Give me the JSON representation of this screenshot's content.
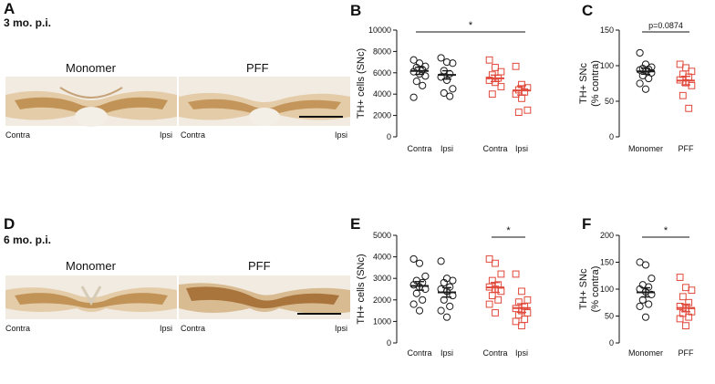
{
  "colors": {
    "monomer": "#1a1a1a",
    "pff": "#e0483a",
    "tissue": "#c79a55",
    "background_tissue": "#f1ebe1"
  },
  "rows": [
    {
      "letter": "A",
      "timepoint": "3 mo. p.i.",
      "images": [
        {
          "title": "Monomer",
          "left_label": "Contra",
          "right_label": "Ipsi"
        },
        {
          "title": "PFF",
          "left_label": "Contra",
          "right_label": "Ipsi"
        }
      ]
    },
    {
      "letter": "D",
      "timepoint": "6 mo. p.i.",
      "images": [
        {
          "title": "Monomer",
          "left_label": "Contra",
          "right_label": "Ipsi"
        },
        {
          "title": "PFF",
          "left_label": "Contra",
          "right_label": "Ipsi"
        }
      ]
    }
  ],
  "chart_data": [
    {
      "id": "B",
      "letter": "B",
      "type": "scatter",
      "ylabel": "TH+ cells (SNc)",
      "ylim": [
        0,
        10000
      ],
      "yticks": [
        "0",
        "2000",
        "4000",
        "6000",
        "8000",
        "10000"
      ],
      "categories": [
        "Contra",
        "Ipsi",
        "Contra",
        "Ipsi"
      ],
      "groups": [
        {
          "name": "Monomer Contra",
          "series": "monomer",
          "values": [
            7200,
            6900,
            6600,
            6500,
            6300,
            6100,
            5900,
            5700,
            5200,
            4800,
            3700
          ],
          "mean": 6180,
          "sem": 330
        },
        {
          "name": "Monomer Ipsi",
          "series": "monomer",
          "values": [
            7400,
            7000,
            6900,
            6200,
            5900,
            5600,
            5300,
            4500,
            4100,
            3800
          ],
          "mean": 5800,
          "sem": 390
        },
        {
          "name": "PFF Contra",
          "series": "pff",
          "values": [
            7200,
            6500,
            6100,
            5800,
            5500,
            5300,
            5100,
            4700,
            4000
          ],
          "mean": 5480,
          "sem": 300
        },
        {
          "name": "PFF Ipsi",
          "series": "pff",
          "values": [
            6600,
            4900,
            4600,
            4400,
            4200,
            4000,
            3600,
            2500,
            2300
          ],
          "mean": 4350,
          "sem": 430
        }
      ],
      "significance": [
        {
          "from": 0,
          "to": 3,
          "label": "*"
        }
      ]
    },
    {
      "id": "C",
      "letter": "C",
      "type": "scatter",
      "ylabel": "TH+ SNc",
      "ylabel2": "(% contra)",
      "ylim": [
        0,
        150
      ],
      "yticks": [
        "0",
        "50",
        "100",
        "150"
      ],
      "categories": [
        "Monomer",
        "PFF"
      ],
      "groups": [
        {
          "name": "Monomer",
          "series": "monomer",
          "values": [
            118,
            102,
            98,
            96,
            95,
            94,
            92,
            90,
            86,
            82,
            75,
            67
          ],
          "mean": 92,
          "sem": 4
        },
        {
          "name": "PFF",
          "series": "pff",
          "values": [
            102,
            97,
            92,
            88,
            84,
            80,
            76,
            72,
            58,
            40
          ],
          "mean": 79,
          "sem": 6
        }
      ],
      "significance": [
        {
          "from": 0,
          "to": 1,
          "label": "p=0.0874"
        }
      ]
    },
    {
      "id": "E",
      "letter": "E",
      "type": "scatter",
      "ylabel": "TH+ cells (SNc)",
      "ylim": [
        0,
        5000
      ],
      "yticks": [
        "0",
        "1000",
        "2000",
        "3000",
        "4000",
        "5000"
      ],
      "categories": [
        "Contra",
        "Ipsi",
        "Contra",
        "Ipsi"
      ],
      "groups": [
        {
          "name": "Monomer Contra",
          "series": "monomer",
          "values": [
            3900,
            3700,
            3100,
            2900,
            2800,
            2700,
            2600,
            2500,
            2300,
            2000,
            1800,
            1500
          ],
          "mean": 2650,
          "sem": 200
        },
        {
          "name": "Monomer Ipsi",
          "series": "monomer",
          "values": [
            3800,
            3000,
            2900,
            2800,
            2600,
            2500,
            2400,
            2200,
            2000,
            1700,
            1500,
            1200
          ],
          "mean": 2350,
          "sem": 220
        },
        {
          "name": "PFF Contra",
          "series": "pff",
          "values": [
            3900,
            3700,
            3200,
            2900,
            2700,
            2600,
            2500,
            2400,
            2200,
            2000,
            1800,
            1400
          ],
          "mean": 2580,
          "sem": 230
        },
        {
          "name": "PFF Ipsi",
          "series": "pff",
          "values": [
            3200,
            2400,
            2000,
            1900,
            1700,
            1600,
            1500,
            1400,
            1300,
            1100,
            1000,
            800
          ],
          "mean": 1620,
          "sem": 200
        }
      ],
      "significance": [
        {
          "from": 2,
          "to": 3,
          "label": "*"
        }
      ]
    },
    {
      "id": "F",
      "letter": "F",
      "type": "scatter",
      "ylabel": "TH+ SNc",
      "ylabel2": "(% contra)",
      "ylim": [
        0,
        200
      ],
      "yticks": [
        "0",
        "50",
        "100",
        "150",
        "200"
      ],
      "categories": [
        "Monomer",
        "PFF"
      ],
      "groups": [
        {
          "name": "Monomer",
          "series": "monomer",
          "values": [
            150,
            145,
            120,
            108,
            104,
            100,
            95,
            90,
            80,
            72,
            68,
            48
          ],
          "mean": 94,
          "sem": 8.5
        },
        {
          "name": "PFF",
          "series": "pff",
          "values": [
            122,
            103,
            98,
            86,
            75,
            68,
            64,
            58,
            55,
            48,
            45,
            32
          ],
          "mean": 65,
          "sem": 7
        }
      ],
      "significance": [
        {
          "from": 0,
          "to": 1,
          "label": "*"
        }
      ]
    }
  ]
}
